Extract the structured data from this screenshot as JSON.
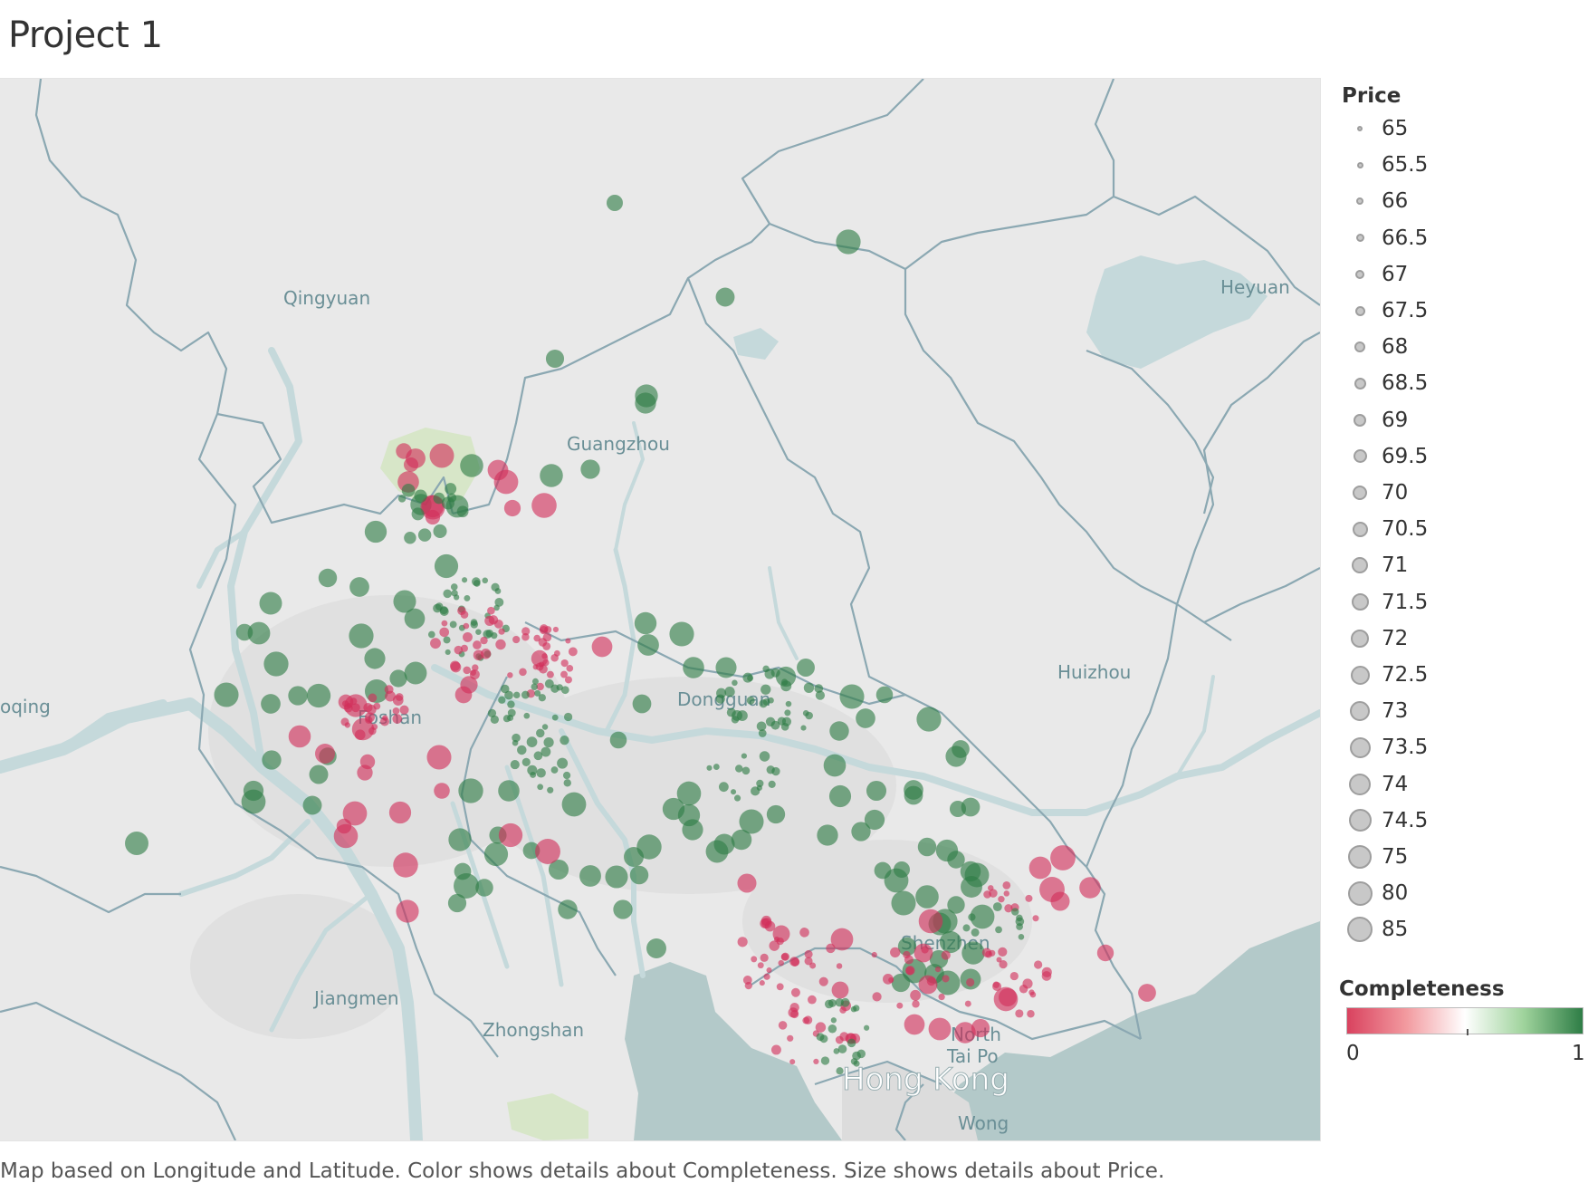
{
  "title": "Project 1",
  "caption": "Map based on Longitude and Latitude.  Color shows details about Completeness.  Size shows details about Price.",
  "map": {
    "place_labels": [
      {
        "id": "qingyuan",
        "text": "Qingyuan"
      },
      {
        "id": "heyuan",
        "text": "Heyuan"
      },
      {
        "id": "guangzhou",
        "text": "Guangzhou"
      },
      {
        "id": "huizhou",
        "text": "Huizhou"
      },
      {
        "id": "zhaoqing",
        "text": "oqing"
      },
      {
        "id": "foshan",
        "text": "Foshan"
      },
      {
        "id": "dongguan",
        "text": "Dongguan"
      },
      {
        "id": "shenzhen",
        "text": "Shenzhen"
      },
      {
        "id": "jiangmen",
        "text": "Jiangmen"
      },
      {
        "id": "zhongshan",
        "text": "Zhongshan"
      },
      {
        "id": "north",
        "text": "North"
      },
      {
        "id": "taipo",
        "text": "Tai Po"
      },
      {
        "id": "hongkong",
        "text": "Hong Kong"
      },
      {
        "id": "wong",
        "text": "Wong"
      }
    ],
    "colors": {
      "land": "#e9e9e9",
      "water": "#c5d9db",
      "sea": "#b3c9c9",
      "border": "#8ba8b2",
      "green": "#2e7d46",
      "red": "#d22e5a",
      "park": "#d7e6c8"
    }
  },
  "legend_price": {
    "title": "Price",
    "items": [
      "65",
      "65.5",
      "66",
      "66.5",
      "67",
      "67.5",
      "68",
      "68.5",
      "69",
      "69.5",
      "70",
      "70.5",
      "71",
      "71.5",
      "72",
      "72.5",
      "73",
      "73.5",
      "74",
      "74.5",
      "75",
      "80",
      "85"
    ]
  },
  "legend_completeness": {
    "title": "Completeness",
    "min_label": "0",
    "max_label": "1",
    "ramp_colors": [
      "#d9425f",
      "#f29a9f",
      "#ffffff",
      "#9fd39c",
      "#2e7d46"
    ]
  }
}
